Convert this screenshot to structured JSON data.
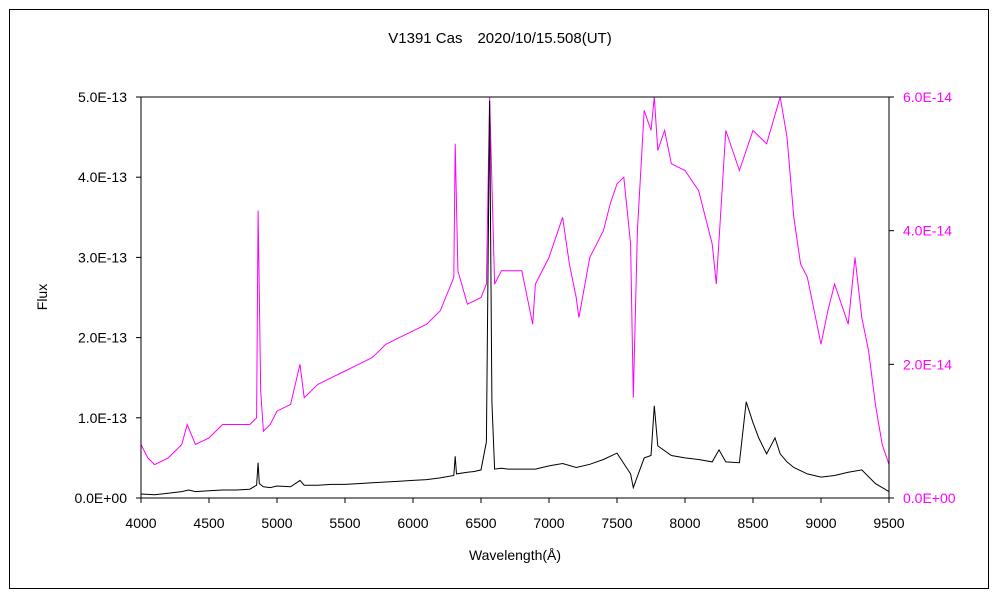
{
  "chart_data": {
    "type": "line",
    "title": "V1391 Cas　2020/10/15.508(UT)",
    "xlabel": "Wavelength(Å)",
    "ylabel": "Flux",
    "xlim": [
      4000,
      9500
    ],
    "ylim_left": [
      0,
      5e-13
    ],
    "ylim_right": [
      0,
      6e-14
    ],
    "x_ticks": [
      "4000",
      "4500",
      "5000",
      "5500",
      "6000",
      "6500",
      "7000",
      "7500",
      "8000",
      "8500",
      "9000",
      "9500"
    ],
    "y_ticks_left": [
      "0.0E+00",
      "1.0E-13",
      "2.0E-13",
      "3.0E-13",
      "4.0E-13",
      "5.0E-13"
    ],
    "y_ticks_right": [
      "0.0E+00",
      "2.0E-14",
      "4.0E-14",
      "6.0E-14"
    ],
    "grid": false,
    "colors": {
      "left_series": "#000000",
      "right_series": "#ff00ff",
      "right_axis_text": "#ff00ff"
    },
    "series": [
      {
        "axis": "left",
        "color": "#000000",
        "x": [
          4000,
          4100,
          4200,
          4300,
          4350,
          4400,
          4500,
          4600,
          4700,
          4800,
          4850,
          4861,
          4870,
          4900,
          4950,
          5000,
          5100,
          5169,
          5200,
          5300,
          5400,
          5500,
          5600,
          5700,
          5800,
          5900,
          6000,
          6100,
          6200,
          6300,
          6310,
          6320,
          6400,
          6450,
          6500,
          6540,
          6563,
          6580,
          6600,
          6650,
          6700,
          6800,
          6900,
          7000,
          7100,
          7200,
          7300,
          7400,
          7500,
          7600,
          7620,
          7700,
          7750,
          7774,
          7800,
          7900,
          8000,
          8100,
          8200,
          8250,
          8300,
          8400,
          8450,
          8498,
          8542,
          8600,
          8662,
          8700,
          8750,
          8800,
          8900,
          9000,
          9100,
          9200,
          9300,
          9400,
          9500
        ],
        "y": [
          5e-15,
          4e-15,
          6e-15,
          8e-15,
          1e-14,
          8e-15,
          9e-15,
          1e-14,
          1e-14,
          1.1e-14,
          1.6e-14,
          4.4e-14,
          1.8e-14,
          1.4e-14,
          1.3e-14,
          1.5e-14,
          1.4e-14,
          2.2e-14,
          1.6e-14,
          1.6e-14,
          1.7e-14,
          1.7e-14,
          1.8e-14,
          1.9e-14,
          2e-14,
          2.1e-14,
          2.2e-14,
          2.3e-14,
          2.5e-14,
          2.8e-14,
          5.2e-14,
          3e-14,
          3.2e-14,
          3.3e-14,
          3.5e-14,
          7e-14,
          4.95e-13,
          1.2e-13,
          3.6e-14,
          3.7e-14,
          3.6e-14,
          3.6e-14,
          3.6e-14,
          4e-14,
          4.3e-14,
          3.8e-14,
          4.2e-14,
          4.8e-14,
          5.6e-14,
          3e-14,
          1.3e-14,
          5e-14,
          5.3e-14,
          1.15e-13,
          6.5e-14,
          5.3e-14,
          5e-14,
          4.8e-14,
          4.5e-14,
          6e-14,
          4.5e-14,
          4.4e-14,
          1.2e-13,
          9.5e-14,
          7.5e-14,
          5.5e-14,
          7.5e-14,
          5.5e-14,
          4.5e-14,
          3.8e-14,
          3e-14,
          2.6e-14,
          2.8e-14,
          3.2e-14,
          3.5e-14,
          1.8e-14,
          8e-15
        ]
      },
      {
        "axis": "right",
        "color": "#ff00ff",
        "x": [
          4000,
          4050,
          4100,
          4200,
          4300,
          4340,
          4400,
          4500,
          4600,
          4700,
          4800,
          4850,
          4861,
          4880,
          4900,
          4950,
          5000,
          5100,
          5169,
          5200,
          5300,
          5400,
          5500,
          5600,
          5700,
          5800,
          5900,
          6000,
          6100,
          6200,
          6300,
          6310,
          6330,
          6400,
          6500,
          6540,
          6563,
          6600,
          6650,
          6700,
          6800,
          6880,
          6900,
          7000,
          7100,
          7150,
          7200,
          7220,
          7300,
          7400,
          7450,
          7500,
          7550,
          7600,
          7620,
          7650,
          7700,
          7750,
          7774,
          7800,
          7850,
          7900,
          8000,
          8100,
          8200,
          8230,
          8300,
          8400,
          8500,
          8600,
          8700,
          8750,
          8800,
          8850,
          8900,
          9000,
          9050,
          9100,
          9200,
          9250,
          9300,
          9350,
          9400,
          9450,
          9500
        ],
        "y": [
          8e-15,
          6e-15,
          5e-15,
          6e-15,
          8e-15,
          1.1e-14,
          8e-15,
          9e-15,
          1.1e-14,
          1.1e-14,
          1.1e-14,
          1.2e-14,
          4.3e-14,
          1.6e-14,
          1e-14,
          1.1e-14,
          1.3e-14,
          1.4e-14,
          2e-14,
          1.5e-14,
          1.7e-14,
          1.8e-14,
          1.9e-14,
          2e-14,
          2.1e-14,
          2.3e-14,
          2.4e-14,
          2.5e-14,
          2.6e-14,
          2.8e-14,
          3.3e-14,
          5.3e-14,
          3.4e-14,
          2.9e-14,
          3e-14,
          3.2e-14,
          6e-14,
          3.2e-14,
          3.4e-14,
          3.4e-14,
          3.4e-14,
          2.6e-14,
          3.2e-14,
          3.6e-14,
          4.2e-14,
          3.5e-14,
          3e-14,
          2.7e-14,
          3.6e-14,
          4e-14,
          4.4e-14,
          4.7e-14,
          4.8e-14,
          3.8e-14,
          1.5e-14,
          4e-14,
          5.8e-14,
          5.5e-14,
          6e-14,
          5.2e-14,
          5.5e-14,
          5e-14,
          4.9e-14,
          4.6e-14,
          3.8e-14,
          3.2e-14,
          5.5e-14,
          4.9e-14,
          5.5e-14,
          5.3e-14,
          6e-14,
          5.4e-14,
          4.2e-14,
          3.5e-14,
          3.3e-14,
          2.3e-14,
          2.8e-14,
          3.2e-14,
          2.6e-14,
          3.6e-14,
          2.7e-14,
          2.2e-14,
          1.4e-14,
          8e-15,
          5e-15
        ]
      }
    ]
  }
}
